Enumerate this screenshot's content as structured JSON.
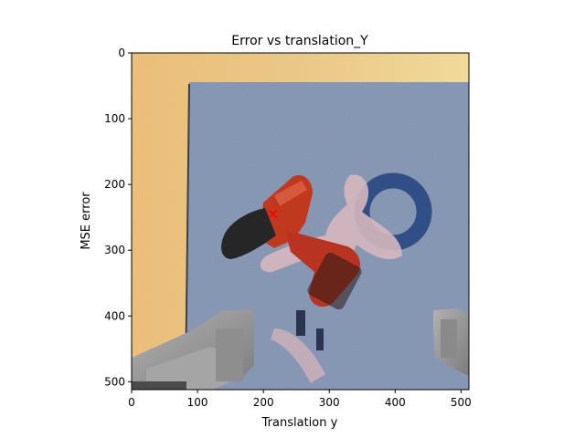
{
  "chart_data": {
    "type": "scatter",
    "title": "Error vs translation_Y",
    "xlabel": "Translation y",
    "ylabel": "MSE error",
    "xlim": [
      0,
      512
    ],
    "ylim": [
      512,
      0
    ],
    "x_ticks": [
      0,
      100,
      200,
      300,
      400,
      500
    ],
    "y_ticks": [
      0,
      100,
      200,
      300,
      400,
      500
    ],
    "grid": false,
    "points": [
      {
        "x": 215,
        "y": 245,
        "marker": "x",
        "color": "#ff0000"
      }
    ],
    "background_image": "rendered scene: drill on blue textured mat, wooden table, gripper fingers"
  },
  "colors": {
    "table_wood": "#e2b66e",
    "mat_blue": "#7d8fae",
    "drill_red": "#c0391f",
    "drill_black": "#262626",
    "gripper_gray": "#9a9a9a",
    "marker": "#ff0000"
  }
}
